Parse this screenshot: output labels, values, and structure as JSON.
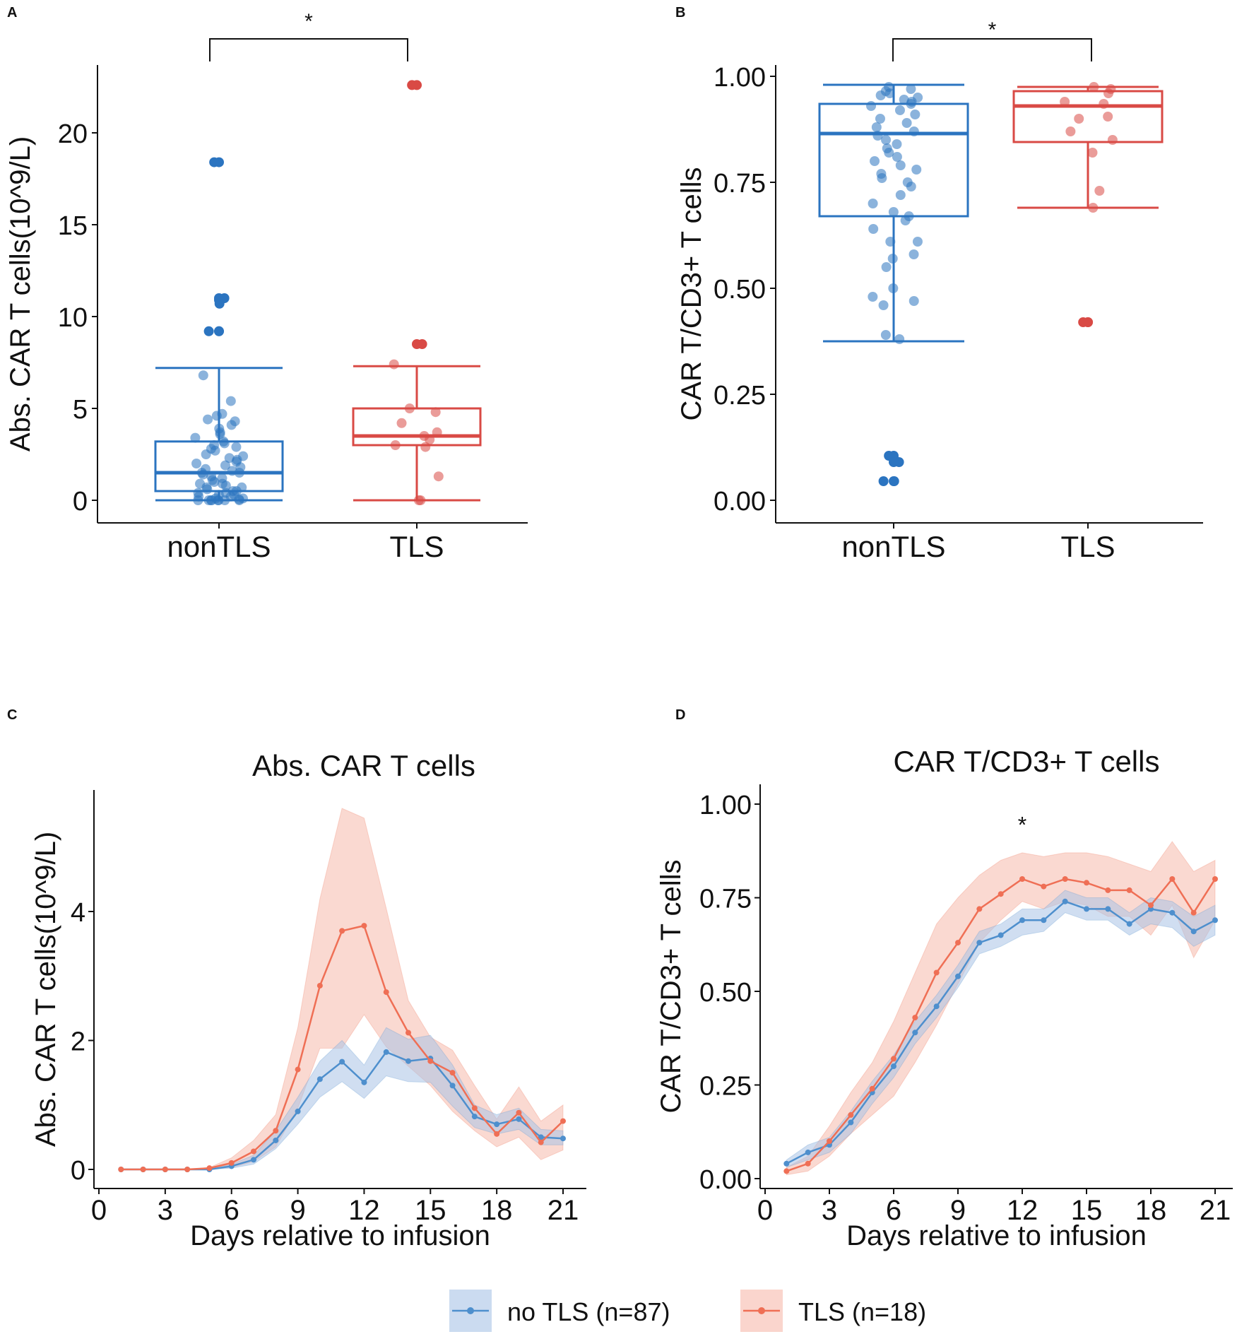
{
  "colors": {
    "nonTLS": "#2b74c0",
    "TLS": "#d94a45",
    "noTLS_line": "#4e8fcd",
    "noTLS_band": "#a9c3e6",
    "TLS_line": "#ef6f55",
    "TLS_band": "#f6b9ab",
    "axis": "#111111"
  },
  "significance": "*",
  "chart_data": [
    {
      "panel": "A",
      "type": "box",
      "ylabel": "Abs. CAR T cells(10^9/L)",
      "ylim": [
        -1,
        24
      ],
      "yticks": [
        0,
        5,
        10,
        15,
        20
      ],
      "categories": [
        "nonTLS",
        "TLS"
      ],
      "significance": "*",
      "boxes": [
        {
          "name": "nonTLS",
          "q1": 0.5,
          "median": 1.5,
          "q3": 3.2,
          "whisker_low": 0.0,
          "whisker_high": 7.2,
          "outliers": [
            18.4,
            18.4,
            11.0,
            11.0,
            10.9,
            10.7,
            9.2,
            9.2,
            9.2
          ],
          "points": [
            6.8,
            5.4,
            4.7,
            4.6,
            4.4,
            4.3,
            4.1,
            3.9,
            3.7,
            3.6,
            3.4,
            3.2,
            3.1,
            3.0,
            2.9,
            2.8,
            2.7,
            2.5,
            2.4,
            2.3,
            2.2,
            2.1,
            2.0,
            1.9,
            1.8,
            1.7,
            1.6,
            1.5,
            1.5,
            1.4,
            1.3,
            1.2,
            1.1,
            1.0,
            0.9,
            0.9,
            0.8,
            0.7,
            0.7,
            0.6,
            0.5,
            0.5,
            0.4,
            0.4,
            0.3,
            0.3,
            0.2,
            0.2,
            0.1,
            0.1,
            0.05,
            0.0,
            0.0,
            0.0,
            0.0,
            0.0,
            0.0,
            0.0,
            0.0
          ]
        },
        {
          "name": "TLS",
          "q1": 3.0,
          "median": 3.5,
          "q3": 5.0,
          "whisker_low": 0.0,
          "whisker_high": 7.3,
          "outliers": [
            22.6,
            22.6,
            8.5,
            8.5
          ],
          "points": [
            7.4,
            5.0,
            4.8,
            4.2,
            3.7,
            3.5,
            3.3,
            3.0,
            2.9,
            1.3,
            0.0,
            0.0
          ]
        }
      ]
    },
    {
      "panel": "B",
      "type": "box",
      "ylabel": "CAR T/CD3+ T cells",
      "ylim": [
        0,
        1
      ],
      "yticks": [
        "0.00",
        "0.25",
        "0.50",
        "0.75",
        "1.00"
      ],
      "categories": [
        "nonTLS",
        "TLS"
      ],
      "significance": "*",
      "boxes": [
        {
          "name": "nonTLS",
          "q1": 0.67,
          "median": 0.865,
          "q3": 0.935,
          "whisker_low": 0.375,
          "whisker_high": 0.98,
          "outliers": [
            0.105,
            0.105,
            0.1,
            0.09,
            0.09,
            0.045,
            0.045,
            0.045
          ],
          "points": [
            0.975,
            0.97,
            0.965,
            0.96,
            0.955,
            0.95,
            0.945,
            0.94,
            0.935,
            0.93,
            0.92,
            0.91,
            0.9,
            0.89,
            0.88,
            0.87,
            0.86,
            0.85,
            0.84,
            0.83,
            0.82,
            0.81,
            0.8,
            0.79,
            0.78,
            0.77,
            0.76,
            0.75,
            0.74,
            0.72,
            0.7,
            0.68,
            0.67,
            0.66,
            0.64,
            0.61,
            0.61,
            0.58,
            0.57,
            0.55,
            0.5,
            0.48,
            0.47,
            0.46,
            0.39,
            0.38
          ]
        },
        {
          "name": "TLS",
          "q1": 0.845,
          "median": 0.93,
          "q3": 0.965,
          "whisker_low": 0.69,
          "whisker_high": 0.975,
          "outliers": [
            0.42,
            0.42,
            0.42
          ],
          "points": [
            0.975,
            0.97,
            0.96,
            0.94,
            0.935,
            0.905,
            0.9,
            0.87,
            0.85,
            0.82,
            0.73,
            0.69
          ]
        }
      ]
    },
    {
      "panel": "C",
      "type": "line",
      "title": "Abs. CAR T cells",
      "xlabel": "Days relative to infusion",
      "ylabel": "Abs. CAR T cells(10^9/L)",
      "xlim": [
        0,
        21.5
      ],
      "ylim": [
        -0.25,
        5.9
      ],
      "xticks": [
        0,
        3,
        6,
        9,
        12,
        15,
        18,
        21
      ],
      "yticks": [
        0,
        2,
        4
      ],
      "series": [
        {
          "name": "no TLS (n=87)",
          "x": [
            1,
            2,
            3,
            4,
            5,
            6,
            7,
            8,
            9,
            10,
            11,
            12,
            13,
            14,
            15,
            16,
            17,
            18,
            19,
            20,
            21
          ],
          "y": [
            0.0,
            0.0,
            0.0,
            0.0,
            0.0,
            0.05,
            0.15,
            0.45,
            0.9,
            1.4,
            1.67,
            1.35,
            1.82,
            1.68,
            1.72,
            1.3,
            0.82,
            0.7,
            0.78,
            0.5,
            0.48
          ],
          "lower": [
            0.0,
            0.0,
            0.0,
            0.0,
            0.0,
            0.02,
            0.08,
            0.32,
            0.7,
            1.12,
            1.36,
            1.1,
            1.45,
            1.36,
            1.35,
            0.98,
            0.65,
            0.55,
            0.62,
            0.38,
            0.38
          ],
          "upper": [
            0.0,
            0.0,
            0.0,
            0.0,
            0.0,
            0.08,
            0.22,
            0.6,
            1.12,
            1.68,
            2.0,
            1.62,
            2.2,
            2.02,
            2.08,
            1.62,
            1.0,
            0.85,
            0.95,
            0.62,
            0.6
          ]
        },
        {
          "name": "TLS (n=18)",
          "x": [
            1,
            2,
            3,
            4,
            5,
            6,
            7,
            8,
            9,
            10,
            11,
            12,
            13,
            14,
            15,
            16,
            17,
            18,
            19,
            20,
            21
          ],
          "y": [
            0.0,
            0.0,
            0.0,
            0.0,
            0.02,
            0.1,
            0.28,
            0.6,
            1.55,
            2.85,
            3.7,
            3.78,
            2.75,
            2.12,
            1.68,
            1.5,
            0.95,
            0.55,
            0.88,
            0.42,
            0.75
          ],
          "lower": [
            0.0,
            0.0,
            0.0,
            0.0,
            0.01,
            0.03,
            0.12,
            0.35,
            0.95,
            1.88,
            1.88,
            2.4,
            1.9,
            1.6,
            1.3,
            0.9,
            0.6,
            0.35,
            0.5,
            0.15,
            0.3
          ],
          "upper": [
            0.0,
            0.0,
            0.0,
            0.0,
            0.03,
            0.18,
            0.45,
            0.85,
            2.2,
            4.2,
            5.6,
            5.45,
            4.05,
            2.62,
            2.05,
            1.85,
            1.3,
            0.78,
            1.28,
            0.75,
            1.0
          ]
        }
      ]
    },
    {
      "panel": "D",
      "type": "line",
      "title": "CAR T/CD3+ T cells",
      "xlabel": "Days relative to infusion",
      "ylabel": "CAR T/CD3+ T cells",
      "xlim": [
        0,
        21.5
      ],
      "ylim": [
        -0.04,
        1.04
      ],
      "xticks": [
        0,
        3,
        6,
        9,
        12,
        15,
        18,
        21
      ],
      "yticks": [
        "0.00",
        "0.25",
        "0.50",
        "0.75",
        "1.00"
      ],
      "annotation": {
        "text": "*",
        "x": 12,
        "y": 0.95
      },
      "series": [
        {
          "name": "no TLS (n=87)",
          "x": [
            1,
            2,
            3,
            4,
            5,
            6,
            7,
            8,
            9,
            10,
            11,
            12,
            13,
            14,
            15,
            16,
            17,
            18,
            19,
            20,
            21
          ],
          "y": [
            0.04,
            0.07,
            0.09,
            0.15,
            0.23,
            0.3,
            0.39,
            0.46,
            0.54,
            0.63,
            0.65,
            0.69,
            0.69,
            0.74,
            0.72,
            0.72,
            0.68,
            0.72,
            0.71,
            0.66,
            0.69
          ],
          "lower": [
            0.03,
            0.05,
            0.07,
            0.12,
            0.2,
            0.27,
            0.36,
            0.43,
            0.51,
            0.6,
            0.62,
            0.65,
            0.66,
            0.71,
            0.69,
            0.69,
            0.65,
            0.68,
            0.67,
            0.62,
            0.65
          ],
          "upper": [
            0.05,
            0.09,
            0.11,
            0.18,
            0.26,
            0.33,
            0.42,
            0.49,
            0.57,
            0.66,
            0.68,
            0.72,
            0.72,
            0.77,
            0.75,
            0.75,
            0.71,
            0.75,
            0.74,
            0.7,
            0.73
          ]
        },
        {
          "name": "TLS (n=18)",
          "x": [
            1,
            2,
            3,
            4,
            5,
            6,
            7,
            8,
            9,
            10,
            11,
            12,
            13,
            14,
            15,
            16,
            17,
            18,
            19,
            20,
            21
          ],
          "y": [
            0.02,
            0.04,
            0.1,
            0.17,
            0.24,
            0.32,
            0.43,
            0.55,
            0.63,
            0.72,
            0.76,
            0.8,
            0.78,
            0.8,
            0.79,
            0.77,
            0.77,
            0.73,
            0.8,
            0.71,
            0.8
          ],
          "lower": [
            0.01,
            0.02,
            0.06,
            0.12,
            0.17,
            0.22,
            0.31,
            0.41,
            0.52,
            0.63,
            0.69,
            0.74,
            0.72,
            0.74,
            0.73,
            0.7,
            0.7,
            0.65,
            0.73,
            0.59,
            0.69
          ],
          "upper": [
            0.03,
            0.06,
            0.14,
            0.23,
            0.31,
            0.42,
            0.55,
            0.68,
            0.75,
            0.81,
            0.85,
            0.87,
            0.86,
            0.87,
            0.87,
            0.86,
            0.84,
            0.82,
            0.9,
            0.82,
            0.85
          ]
        }
      ]
    }
  ],
  "legend": [
    {
      "label": "no TLS (n=87)"
    },
    {
      "label": "TLS (n=18)"
    }
  ]
}
